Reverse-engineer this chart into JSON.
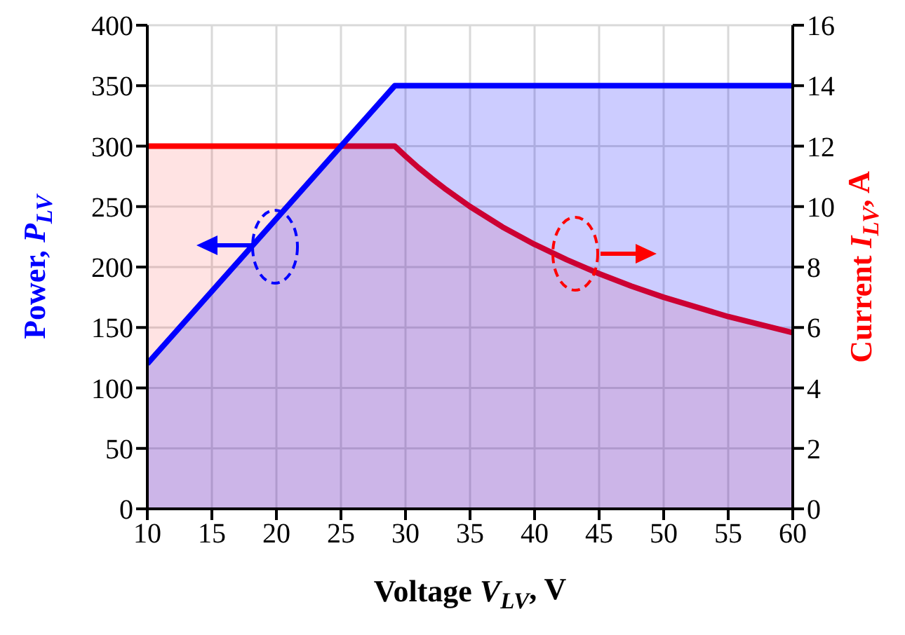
{
  "chart_data": {
    "type": "area",
    "xlabel": "Voltage V$_{LV}$, V",
    "ylabel": "Power, P$_{LV}$",
    "y2label": "Current I$_{LV}$, A",
    "x": [
      10,
      29.17,
      30,
      31,
      32,
      33,
      35,
      37.5,
      40,
      42.5,
      45,
      47.5,
      50,
      55,
      60
    ],
    "series": [
      {
        "color": "#ff0000",
        "axis": "y2",
        "values": [
          12,
          12,
          11.67,
          11.29,
          10.94,
          10.61,
          10,
          9.33,
          8.75,
          8.24,
          7.78,
          7.37,
          7,
          6.36,
          5.83
        ]
      },
      {
        "color": "#0000ff",
        "values": [
          120,
          350,
          350,
          350,
          350,
          350,
          350,
          350,
          350,
          350,
          350,
          350,
          350,
          350,
          350
        ]
      }
    ],
    "xlim": [
      10,
      60
    ],
    "xticks": [
      10,
      15,
      20,
      25,
      30,
      35,
      40,
      45,
      50,
      55,
      60
    ],
    "ylim": [
      0,
      400
    ],
    "yticks": [
      0,
      50,
      100,
      150,
      200,
      250,
      300,
      350,
      400
    ],
    "y2lim": [
      0,
      16
    ],
    "y2ticks": [
      0,
      2,
      4,
      6,
      8,
      10,
      12,
      14,
      16
    ],
    "grid": true,
    "legend": false
  }
}
